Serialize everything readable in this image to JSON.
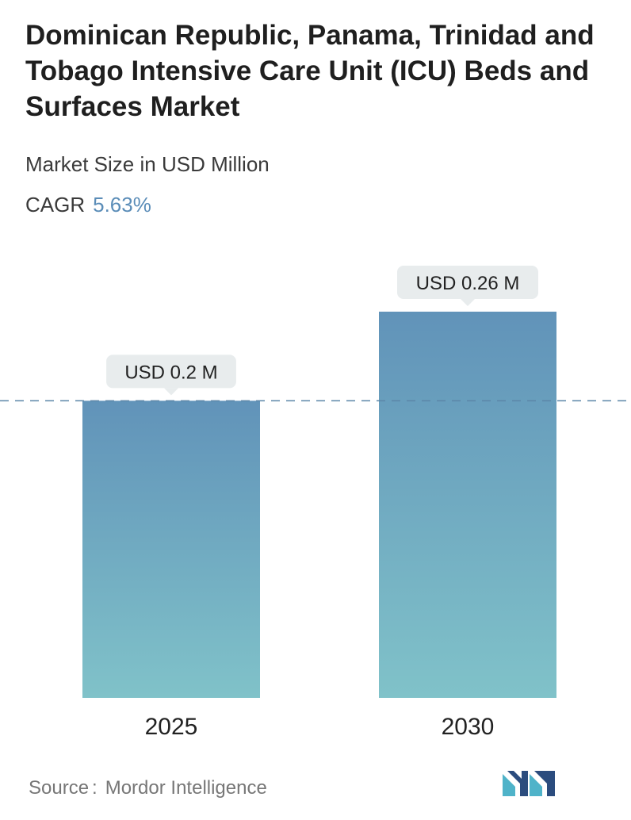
{
  "header": {
    "title": "Dominican Republic, Panama, Trinidad and Tobago Intensive Care Unit (ICU) Beds and Surfaces Market",
    "subtitle": "Market Size in USD Million",
    "cagr_label": "CAGR",
    "cagr_value": "5.63%"
  },
  "chart_data": {
    "type": "bar",
    "categories": [
      "2025",
      "2030"
    ],
    "values": [
      0.2,
      0.26
    ],
    "data_labels": [
      "USD 0.2 M",
      "USD 0.26 M"
    ],
    "title": "Dominican Republic, Panama, Trinidad and Tobago Intensive Care Unit (ICU) Beds and Surfaces Market",
    "subtitle": "Market Size in USD Million",
    "xlabel": "",
    "ylabel": "",
    "ylim": [
      0,
      0.26
    ],
    "grid": false,
    "reference_line": 0.2,
    "bar_color_top": "#6193b9",
    "bar_color_bottom": "#80c2c9",
    "label_bg": "#e8eced"
  },
  "footer": {
    "source_label": "Source",
    "source_sep": ":",
    "source_name": "Mordor Intelligence"
  },
  "logo": {
    "icon": "mordor-intelligence-logo",
    "color_primary": "#2b4c7e",
    "color_accent": "#4fb3c9"
  }
}
